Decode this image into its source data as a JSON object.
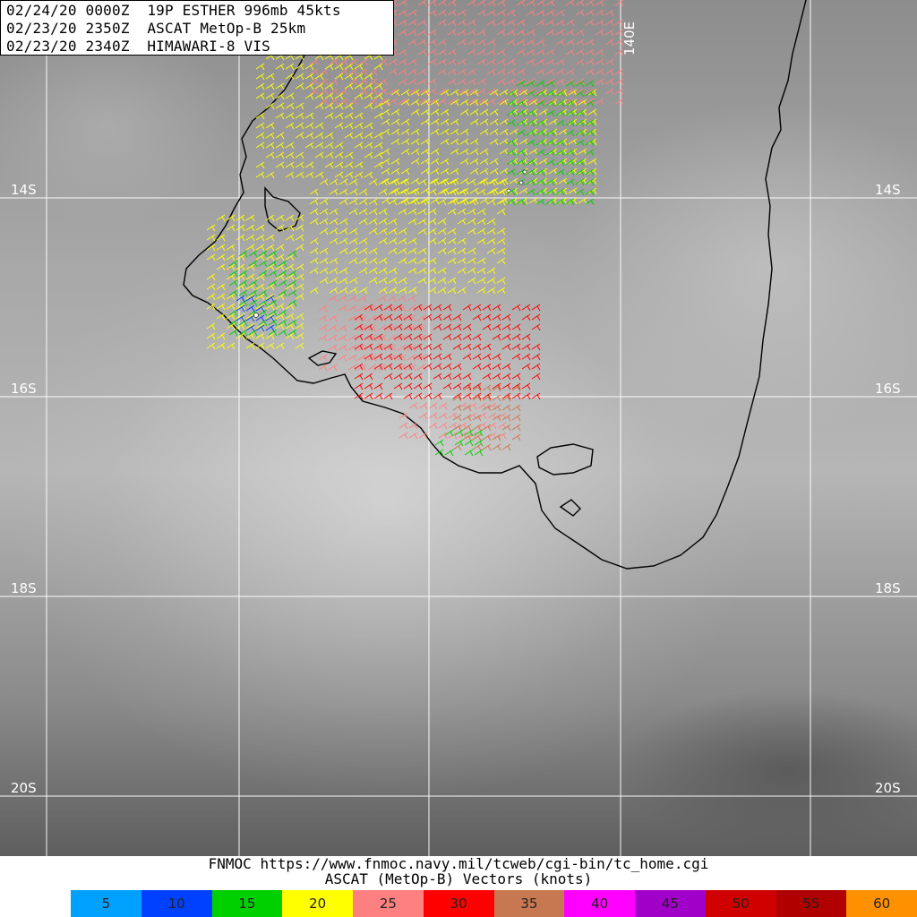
{
  "header": {
    "line1": "02/24/20 0000Z  19P ESTHER 996mb 45kts",
    "line2": "02/23/20 2350Z  ASCAT MetOp-B 25km",
    "line3": "02/23/20 2340Z  HIMAWARI-8 VIS"
  },
  "grid": {
    "lat_labels": [
      "14S",
      "16S",
      "18S",
      "20S"
    ],
    "lon_label": "140E"
  },
  "footer": {
    "url_line": "FNMOC https://www.fnmoc.navy.mil/tcweb/cgi-bin/tc_home.cgi",
    "legend_title": "ASCAT (MetOp-B) Vectors (knots)"
  },
  "legend": [
    {
      "label": "5",
      "color": "#00a0ff"
    },
    {
      "label": "10",
      "color": "#0040ff"
    },
    {
      "label": "15",
      "color": "#00d000"
    },
    {
      "label": "20",
      "color": "#ffff00"
    },
    {
      "label": "25",
      "color": "#ff8080"
    },
    {
      "label": "30",
      "color": "#ff0000"
    },
    {
      "label": "35",
      "color": "#c87850"
    },
    {
      "label": "40",
      "color": "#ff00ff"
    },
    {
      "label": "45",
      "color": "#a000c8"
    },
    {
      "label": "50",
      "color": "#d00000"
    },
    {
      "label": "55",
      "color": "#b00000"
    },
    {
      "label": "60",
      "color": "#ff9000"
    }
  ]
}
